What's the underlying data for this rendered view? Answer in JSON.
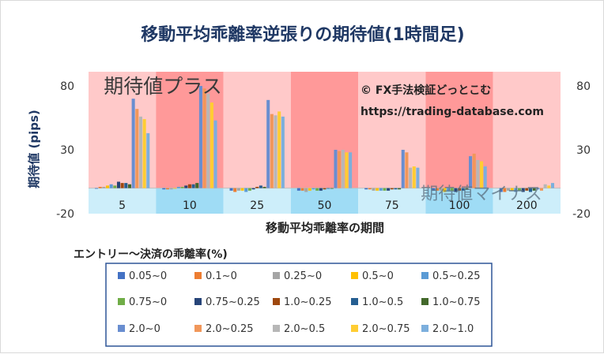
{
  "chart_data": {
    "type": "bar",
    "title": "移動平均乖離率逆張りの期待値(1時間足)",
    "xlabel": "移動平均乖離率の期間",
    "ylabel": "期待値 (pips)",
    "ylim": [
      -20,
      90
    ],
    "y_ticks": [
      80,
      30,
      -20
    ],
    "grid": false,
    "legend_position": "bottom",
    "legend_title": "エントリー～決済の乖離率(%)",
    "categories": [
      "5",
      "10",
      "25",
      "50",
      "75",
      "100",
      "200"
    ],
    "annotations": {
      "plus": "期待値プラス",
      "minus": "期待値マイナス",
      "copyright": "© FX手法検証どっとこむ",
      "url": "https://trading-database.com"
    },
    "colors": {
      "title": "#1f3864",
      "plus_band_light": "#ffc9c9",
      "plus_band_dark": "#ff9999",
      "minus_band_light": "#cdeefa",
      "minus_band_dark": "#9fdcf5",
      "legend_border": "#2f5597"
    },
    "series": [
      {
        "name": "0.05~0",
        "color": "#4472c4",
        "values": [
          0,
          -1,
          -2,
          -2,
          -1,
          -2,
          -3
        ]
      },
      {
        "name": "0.1~0",
        "color": "#ed7d31",
        "values": [
          1,
          -1,
          -3,
          -2,
          -1,
          -2,
          -3
        ]
      },
      {
        "name": "0.25~0",
        "color": "#a5a5a5",
        "values": [
          1,
          -1,
          -2,
          -3,
          -2,
          -2,
          -2
        ]
      },
      {
        "name": "0.5~0",
        "color": "#ffc000",
        "values": [
          2,
          0,
          -2,
          -2,
          -2,
          -3,
          -2
        ]
      },
      {
        "name": "0.5~0.25",
        "color": "#5b9bd5",
        "values": [
          3,
          1,
          -3,
          -1,
          -2,
          -2,
          -3
        ]
      },
      {
        "name": "0.75~0",
        "color": "#70ad47",
        "values": [
          2,
          1,
          -2,
          -2,
          -2,
          -2,
          -2
        ]
      },
      {
        "name": "0.75~0.25",
        "color": "#264478",
        "values": [
          5,
          2,
          -1,
          -2,
          -2,
          -3,
          -3
        ]
      },
      {
        "name": "1.0~0.25",
        "color": "#9e480e",
        "values": [
          4,
          3,
          1,
          -1,
          -1,
          -2,
          -2
        ]
      },
      {
        "name": "1.0~0.5",
        "color": "#255e91",
        "values": [
          4,
          3,
          2,
          0,
          -1,
          -2,
          -3
        ]
      },
      {
        "name": "1.0~0.75",
        "color": "#43682b",
        "values": [
          3,
          4,
          1,
          0,
          -1,
          -1,
          -2
        ]
      },
      {
        "name": "2.0~0",
        "color": "#698ed0",
        "values": [
          70,
          80,
          69,
          30,
          30,
          25,
          -1
        ]
      },
      {
        "name": "2.0~0.25",
        "color": "#f1975a",
        "values": [
          62,
          78,
          58,
          29,
          28,
          27,
          -2
        ]
      },
      {
        "name": "2.0~0.5",
        "color": "#b7b7b7",
        "values": [
          56,
          74,
          57,
          30,
          16,
          22,
          3
        ]
      },
      {
        "name": "2.0~0.75",
        "color": "#ffcd33",
        "values": [
          54,
          67,
          60,
          28,
          17,
          21,
          2
        ]
      },
      {
        "name": "2.0~1.0",
        "color": "#7cafdd",
        "values": [
          43,
          53,
          56,
          28,
          16,
          17,
          4
        ]
      }
    ]
  }
}
